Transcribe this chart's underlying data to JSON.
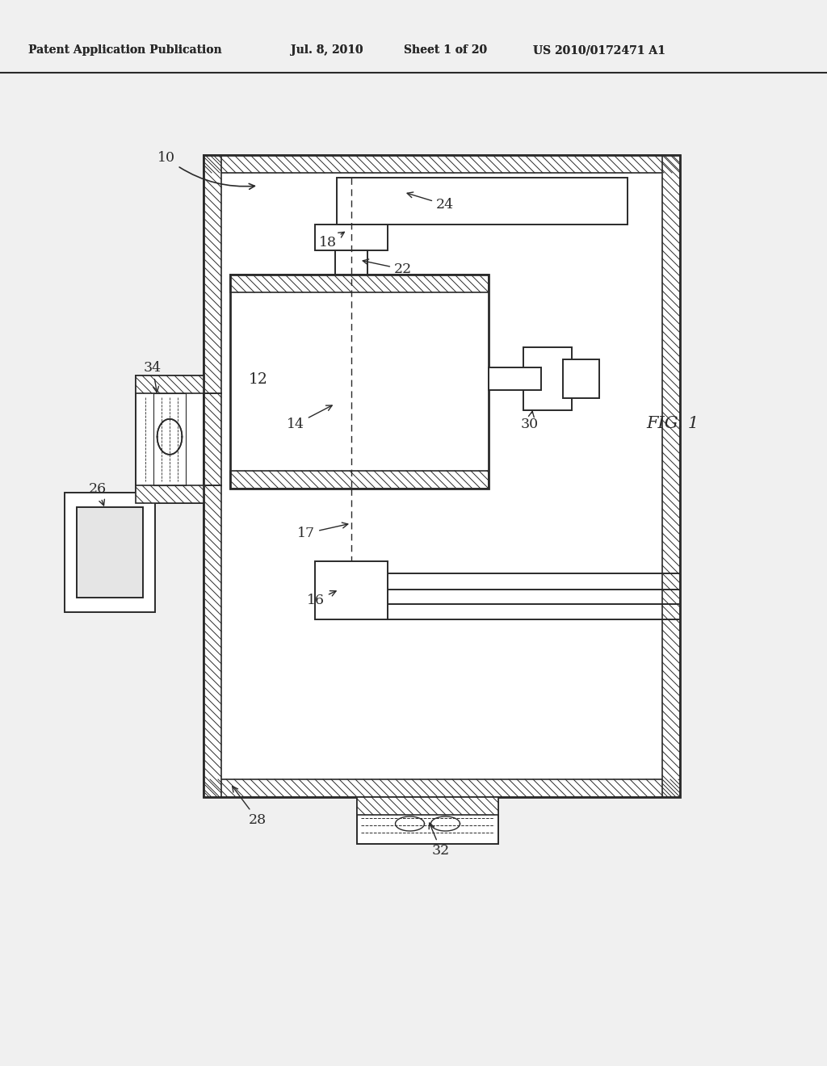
{
  "bg_color": "#f0f0f0",
  "line_color": "#2a2a2a",
  "header_text": "Patent Application Publication",
  "header_date": "Jul. 8, 2010",
  "header_sheet": "Sheet 1 of 20",
  "header_patent": "US 2010/0172471 A1",
  "fig_label": "FIG. 1"
}
